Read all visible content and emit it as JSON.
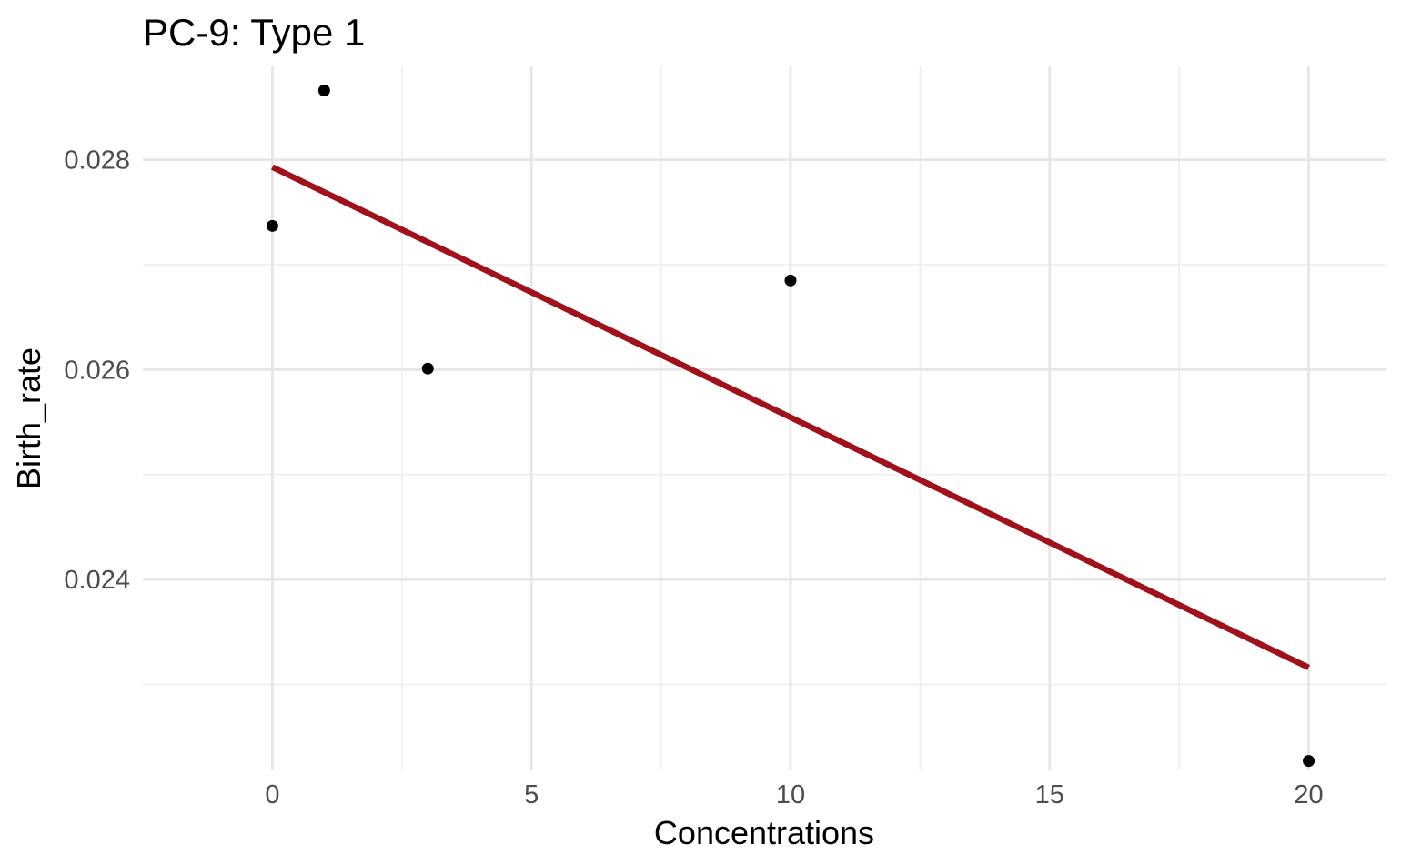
{
  "chart_data": {
    "type": "scatter",
    "title": "PC-9: Type 1",
    "xlabel": "Concentrations",
    "ylabel": "Birth_rate",
    "xlim": [
      -2.5,
      21.5
    ],
    "ylim": [
      0.02218,
      0.02889
    ],
    "x_ticks": [
      0,
      5,
      10,
      15,
      20
    ],
    "x_tick_labels": [
      "0",
      "5",
      "10",
      "15",
      "20"
    ],
    "x_minor_ticks": [
      2.5,
      7.5,
      12.5,
      17.5
    ],
    "y_ticks": [
      0.024,
      0.026,
      0.028
    ],
    "y_tick_labels": [
      "0.024",
      "0.026",
      "0.028"
    ],
    "y_minor_ticks": [
      0.023,
      0.025,
      0.027
    ],
    "grid": true,
    "series": [
      {
        "type": "scatter",
        "color": "#000000",
        "points": [
          {
            "x": 0,
            "y": 0.02737
          },
          {
            "x": 1,
            "y": 0.02866
          },
          {
            "x": 3,
            "y": 0.02601
          },
          {
            "x": 10,
            "y": 0.02685
          },
          {
            "x": 20,
            "y": 0.02227
          }
        ]
      },
      {
        "type": "line",
        "color": "#a0111b",
        "points": [
          {
            "x": 0,
            "y": 0.02793
          },
          {
            "x": 20,
            "y": 0.02316
          }
        ]
      }
    ]
  }
}
